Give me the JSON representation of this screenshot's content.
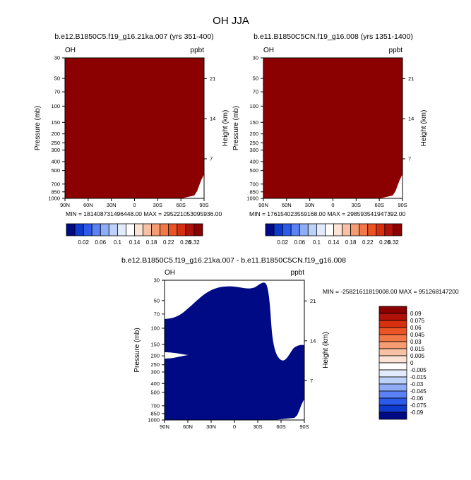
{
  "chart_data": [
    {
      "type": "heatmap",
      "title": "OH JJA",
      "subtitle": "b.e12.B1850C5.f19_g16.21ka.007 (yrs 351-400)",
      "left_label": "OH",
      "right_label": "ppbt",
      "ylabel": "Pressure (mb)",
      "ylabel_right": "Height (km)",
      "x_ticks": [
        "90N",
        "60N",
        "30N",
        "0",
        "30S",
        "60S",
        "90S"
      ],
      "y_ticks": [
        "30",
        "50",
        "70",
        "100",
        "150",
        "200",
        "250",
        "300",
        "400",
        "500",
        "700",
        "850",
        "1000"
      ],
      "y_ticks_right": [
        "21",
        "14",
        "7"
      ],
      "y_scale": "log",
      "ylim": [
        1000,
        30
      ],
      "grid": false,
      "fill_color": "#8b0000",
      "min_text": "MIN = 181408731496448.00",
      "max_text": "MAX = 295221053095936.00",
      "colorbar": {
        "orientation": "horizontal",
        "labels": [
          "0.02",
          "0.06",
          "0.1",
          "0.14",
          "0.18",
          "0.22",
          "0.26",
          "0.32"
        ],
        "colors": [
          "#000a85",
          "#0e3ad0",
          "#2c5aeb",
          "#5a82f5",
          "#8facf7",
          "#bdd2fa",
          "#e1ebfb",
          "#ffffff",
          "#fce3d5",
          "#f8c1a3",
          "#f79c72",
          "#f37848",
          "#eb5325",
          "#d7300f",
          "#b01108",
          "#8b0000"
        ]
      }
    },
    {
      "type": "heatmap",
      "subtitle": "b.e11.B1850C5CN.f19_g16.008 (yrs 1351-1400)",
      "left_label": "OH",
      "right_label": "ppbt",
      "ylabel": "Pressure (mb)",
      "ylabel_right": "Height (km)",
      "x_ticks": [
        "90N",
        "60N",
        "30N",
        "0",
        "30S",
        "60S",
        "90S"
      ],
      "y_ticks": [
        "30",
        "50",
        "70",
        "100",
        "150",
        "200",
        "250",
        "300",
        "400",
        "500",
        "700",
        "850",
        "1000"
      ],
      "y_ticks_right": [
        "21",
        "14",
        "7"
      ],
      "y_scale": "log",
      "ylim": [
        1000,
        30
      ],
      "grid": false,
      "fill_color": "#8b0000",
      "min_text": "MIN = 176154023559168.00",
      "max_text": "MAX = 298593541947392.00",
      "colorbar": {
        "orientation": "horizontal",
        "labels": [
          "0.02",
          "0.06",
          "0.1",
          "0.14",
          "0.18",
          "0.22",
          "0.26",
          "0.32"
        ],
        "colors": [
          "#000a85",
          "#0e3ad0",
          "#2c5aeb",
          "#5a82f5",
          "#8facf7",
          "#bdd2fa",
          "#e1ebfb",
          "#ffffff",
          "#fce3d5",
          "#f8c1a3",
          "#f79c72",
          "#f37848",
          "#eb5325",
          "#d7300f",
          "#b01108",
          "#8b0000"
        ]
      }
    },
    {
      "type": "heatmap",
      "subtitle": "b.e12.B1850C5.f19_g16.21ka.007 - b.e11.B1850C5CN.f19_g16.008",
      "left_label": "OH",
      "right_label": "ppbt",
      "ylabel": "Pressure (mb)",
      "ylabel_right": "Height (km)",
      "x_ticks": [
        "90N",
        "60N",
        "30N",
        "0",
        "30S",
        "60S",
        "90S"
      ],
      "y_ticks": [
        "30",
        "50",
        "70",
        "100",
        "150",
        "200",
        "250",
        "300",
        "400",
        "500",
        "700",
        "850",
        "1000"
      ],
      "y_ticks_right": [
        "21",
        "14",
        "7"
      ],
      "y_scale": "log",
      "ylim": [
        1000,
        30
      ],
      "grid": false,
      "fill_color": "#000a85",
      "min_text": "MIN = -25821611819008.00",
      "max_text": "MAX = 951268147200",
      "colorbar": {
        "orientation": "vertical",
        "labels": [
          "0.09",
          "0.075",
          "0.06",
          "0.045",
          "0.03",
          "0.015",
          "0.005",
          "0",
          "-0.005",
          "-0.015",
          "-0.03",
          "-0.045",
          "-0.06",
          "-0.075",
          "-0.09"
        ],
        "colors": [
          "#8b0000",
          "#b01108",
          "#d7300f",
          "#eb5325",
          "#f37848",
          "#f79c72",
          "#f8c1a3",
          "#fce3d5",
          "#ffffff",
          "#e1ebfb",
          "#bdd2fa",
          "#8facf7",
          "#5a82f5",
          "#2c5aeb",
          "#0e3ad0",
          "#000a85"
        ]
      }
    }
  ]
}
